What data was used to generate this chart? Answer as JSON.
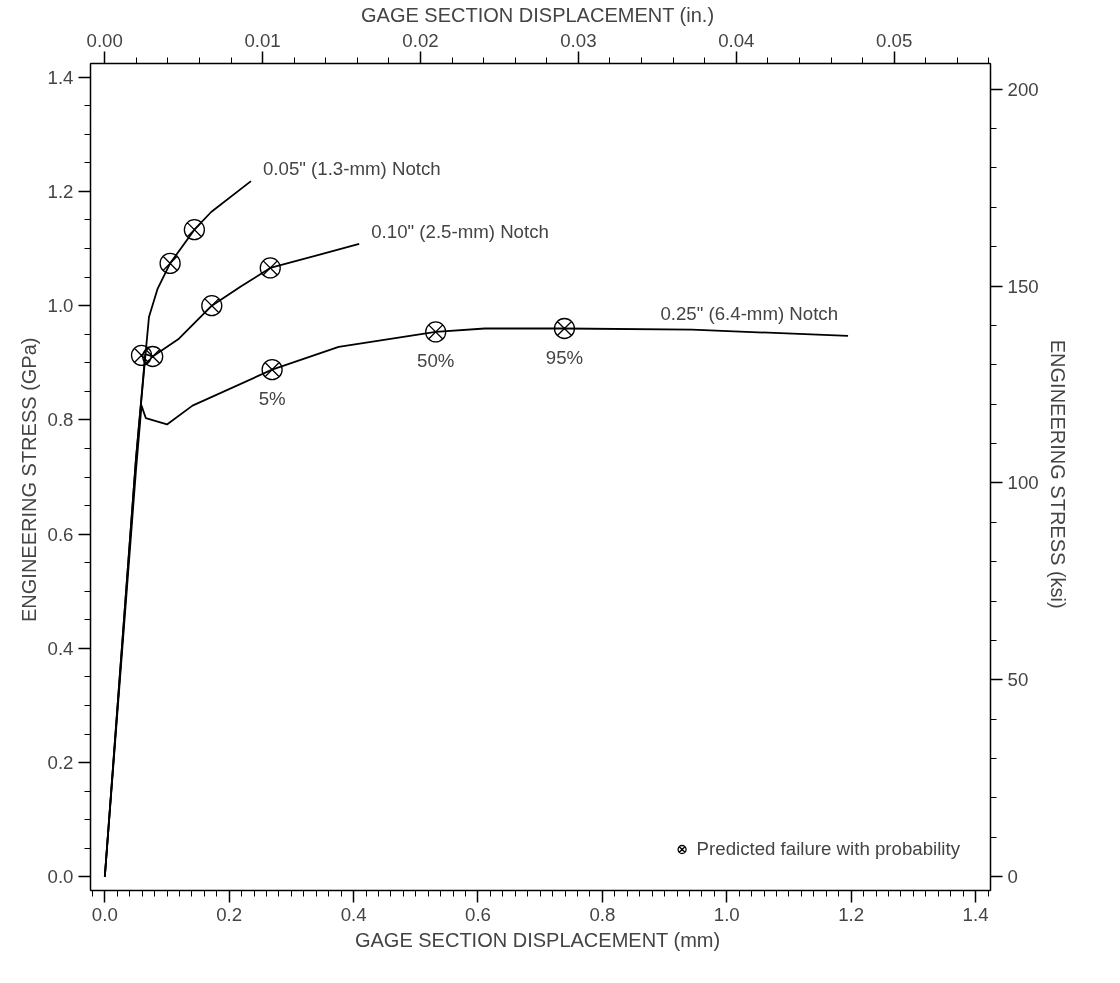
{
  "chart_data": {
    "type": "line",
    "xlabel": "GAGE SECTION DISPLACEMENT  (mm)",
    "x2label": "GAGE SECTION DISPLACEMENT  (in.)",
    "ylabel": "ENGINEERING STRESS  (GPa)",
    "y2label": "ENGINEERING STRESS  (ksi)",
    "xlim": [
      -0.023,
      1.424
    ],
    "ylim": [
      -0.024,
      1.424
    ],
    "x2lim": [
      -0.0009,
      0.0561
    ],
    "y2lim": [
      -3.5,
      206.5
    ],
    "xticks": [
      {
        "value": 0,
        "label": "0.0"
      },
      {
        "value": 0.2,
        "label": "0.2"
      },
      {
        "value": 0.4,
        "label": "0.4"
      },
      {
        "value": 0.6,
        "label": "0.6"
      },
      {
        "value": 0.8,
        "label": "0.8"
      },
      {
        "value": 1.0,
        "label": "1.0"
      },
      {
        "value": 1.2,
        "label": "1.2"
      },
      {
        "value": 1.4,
        "label": "1.4"
      }
    ],
    "yticks": [
      {
        "value": 0,
        "label": "0.0"
      },
      {
        "value": 0.2,
        "label": "0.2"
      },
      {
        "value": 0.4,
        "label": "0.4"
      },
      {
        "value": 0.6,
        "label": "0.6"
      },
      {
        "value": 0.8,
        "label": "0.8"
      },
      {
        "value": 1.0,
        "label": "1.0"
      },
      {
        "value": 1.2,
        "label": "1.2"
      },
      {
        "value": 1.4,
        "label": "1.4"
      }
    ],
    "x2ticks": [
      {
        "value": 0,
        "label": "0.00"
      },
      {
        "value": 0.01,
        "label": "0.01"
      },
      {
        "value": 0.02,
        "label": "0.02"
      },
      {
        "value": 0.03,
        "label": "0.03"
      },
      {
        "value": 0.04,
        "label": "0.04"
      },
      {
        "value": 0.05,
        "label": "0.05"
      }
    ],
    "y2ticks": [
      0,
      50,
      100,
      150,
      200
    ],
    "grid": false,
    "legend": "bottom right",
    "line_style": "solid",
    "series": [
      {
        "name": "0.05\" (1.3-mm) Notch",
        "color": "#000000",
        "marker": "none",
        "x": [
          0,
          0.05,
          0.065,
          0.071,
          0.085,
          0.105,
          0.144,
          0.171,
          0.235
        ],
        "values": [
          0,
          0.73,
          0.91,
          0.98,
          1.03,
          1.074,
          1.133,
          1.164,
          1.218
        ]
      },
      {
        "name": "0.10\" (2.5-mm) Notch",
        "color": "#000000",
        "marker": "none",
        "x": [
          0,
          0.05,
          0.065,
          0.077,
          0.118,
          0.172,
          0.218,
          0.266,
          0.409
        ],
        "values": [
          0,
          0.73,
          0.915,
          0.911,
          0.941,
          1.0,
          1.033,
          1.066,
          1.108
        ]
      },
      {
        "name": "0.25\" (6.4-mm) Notch",
        "color": "#000000",
        "marker": "none",
        "x": [
          0,
          0.05,
          0.059,
          0.066,
          0.1,
          0.141,
          0.269,
          0.376,
          0.532,
          0.611,
          0.739,
          0.944,
          1.195
        ],
        "values": [
          0,
          0.71,
          0.825,
          0.803,
          0.792,
          0.825,
          0.888,
          0.928,
          0.954,
          0.96,
          0.96,
          0.958,
          0.947
        ]
      },
      {
        "name": "Predicted failure with probability",
        "type": "scatter",
        "color": "#000000",
        "marker": "cross",
        "x": [
          0.059,
          0.105,
          0.144,
          0.077,
          0.172,
          0.266,
          0.269,
          0.532,
          0.739
        ],
        "values": [
          0.913,
          1.074,
          1.133,
          0.911,
          1.0,
          1.066,
          0.888,
          0.954,
          0.96
        ]
      }
    ],
    "annotations": [
      {
        "text": "5%",
        "x": 0.269,
        "y": 0.888
      },
      {
        "text": "50%",
        "x": 0.532,
        "y": 0.954
      },
      {
        "text": "95%",
        "x": 0.739,
        "y": 0.96
      }
    ]
  }
}
